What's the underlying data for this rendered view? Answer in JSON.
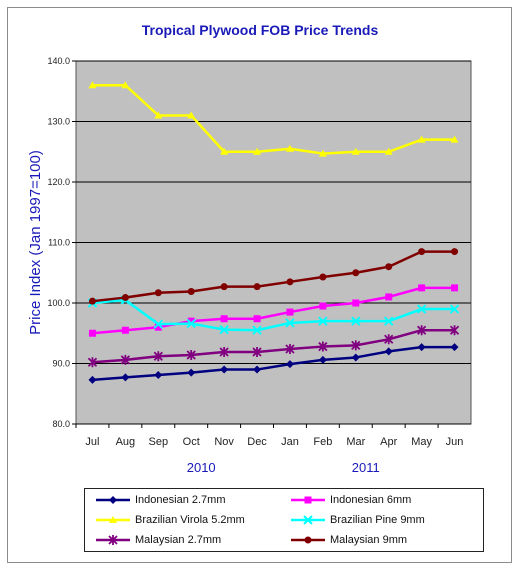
{
  "chart_data": {
    "type": "line",
    "title": "Tropical Plywood FOB Price Trends",
    "ylabel": "Price Index (Jan 1997=100)",
    "ylim": [
      80,
      140
    ],
    "yticks": [
      "80.0",
      "90.0",
      "100.0",
      "110.0",
      "120.0",
      "130.0",
      "140.0"
    ],
    "grid": "horizontal",
    "legend": "bottom",
    "categories": [
      "Jul",
      "Aug",
      "Sep",
      "Oct",
      "Nov",
      "Dec",
      "Jan",
      "Feb",
      "Mar",
      "Apr",
      "May",
      "Jun"
    ],
    "year_labels": [
      {
        "label": "2010",
        "center_category": "Oct"
      },
      {
        "label": "2011",
        "center_category": "Mar"
      }
    ],
    "series": [
      {
        "name": "Indonesian 2.7mm",
        "color": "#000080",
        "marker": "diamond",
        "values": [
          87.3,
          87.7,
          88.1,
          88.5,
          89.0,
          89.0,
          89.9,
          90.6,
          91.0,
          92.0,
          92.7,
          92.7
        ]
      },
      {
        "name": "Indonesian 6mm",
        "color": "#ff00ff",
        "marker": "square",
        "values": [
          95.0,
          95.5,
          96.0,
          97.0,
          97.4,
          97.4,
          98.5,
          99.5,
          100.0,
          101.0,
          102.5,
          102.5
        ]
      },
      {
        "name": "Brazilian Virola 5.2mm",
        "color": "#ffff00",
        "marker": "triangle",
        "values": [
          136.0,
          136.0,
          131.0,
          131.0,
          125.0,
          125.0,
          125.5,
          124.7,
          125.0,
          125.0,
          127.0,
          127.0
        ]
      },
      {
        "name": "Brazilian Pine 9mm",
        "color": "#00ffff",
        "marker": "cross",
        "values": [
          100.0,
          100.5,
          96.5,
          96.6,
          95.6,
          95.5,
          96.7,
          97.0,
          97.0,
          97.0,
          99.0,
          99.0
        ]
      },
      {
        "name": "Malaysian 2.7mm",
        "color": "#800080",
        "marker": "star",
        "values": [
          90.2,
          90.6,
          91.2,
          91.4,
          91.9,
          91.9,
          92.4,
          92.8,
          93.0,
          94.0,
          95.5,
          95.5
        ]
      },
      {
        "name": "Malaysian 9mm",
        "color": "#800000",
        "marker": "circle",
        "values": [
          100.3,
          100.9,
          101.7,
          101.9,
          102.7,
          102.7,
          103.5,
          104.3,
          105.0,
          106.0,
          108.5,
          108.5
        ]
      }
    ],
    "plot_background": "#c0c0c0"
  }
}
